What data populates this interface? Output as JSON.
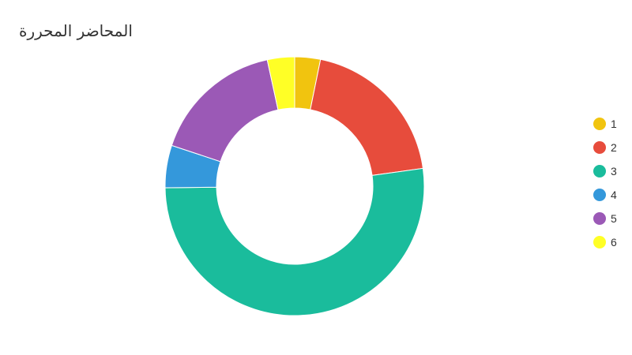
{
  "chart_data": {
    "type": "pie",
    "title": "المحاضر المحررة",
    "subtitle": "",
    "legend_position": "right",
    "donut": true,
    "categories": [
      "1",
      "2",
      "3",
      "4",
      "5",
      "6"
    ],
    "values": [
      3.2,
      19.6,
      52.0,
      5.3,
      16.5,
      3.4
    ],
    "colors": [
      "#f1c40f",
      "#e74c3c",
      "#1abc9c",
      "#3498db",
      "#9b59b6",
      "#ffff26"
    ],
    "series": [
      {
        "name": "",
        "values": [
          3.2,
          19.6,
          52.0,
          5.3,
          16.5,
          3.4
        ]
      }
    ]
  }
}
